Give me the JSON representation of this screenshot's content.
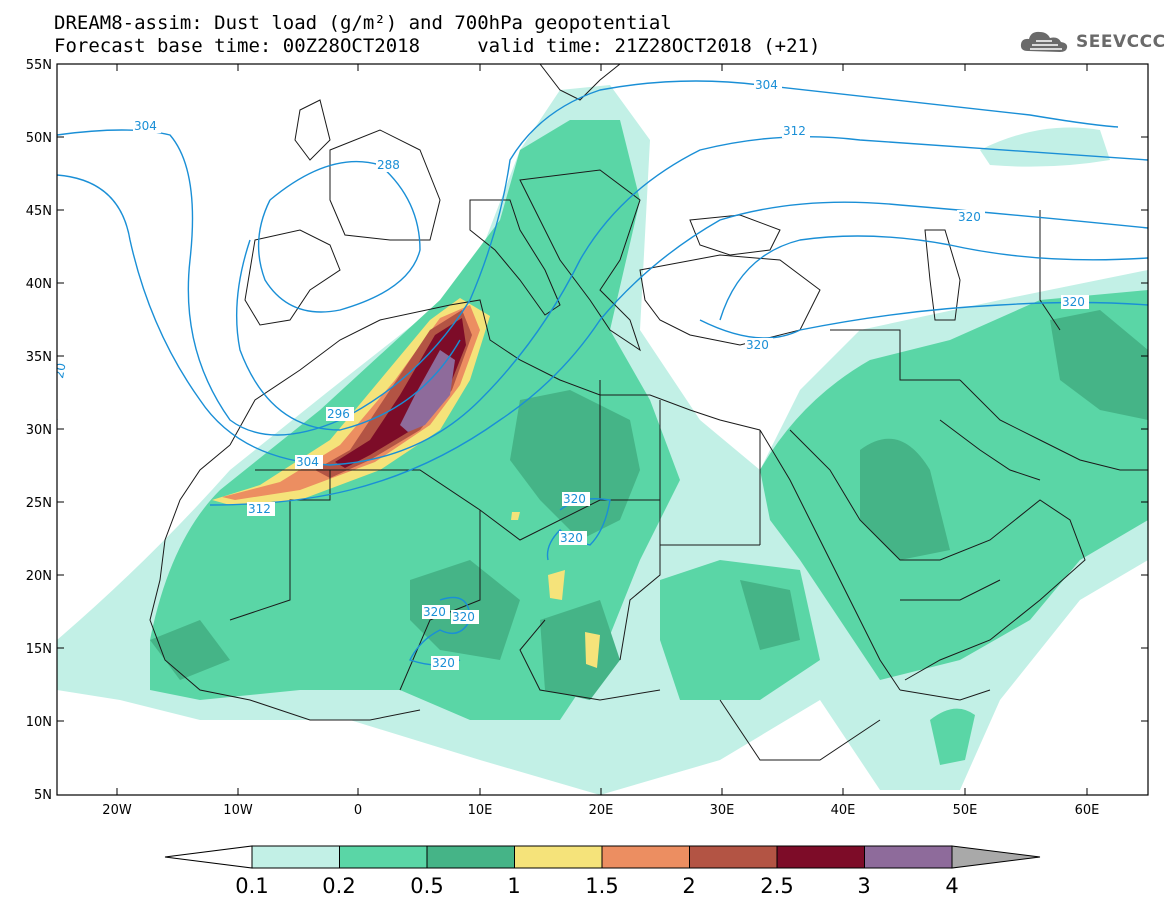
{
  "title": {
    "line1": "DREAM8-assim: Dust load (g/m²) and 700hPa geopotential",
    "line2": "Forecast base time: 00Z28OCT2018     valid time: 21Z28OCT2018 (+21)"
  },
  "logo": {
    "icon": "cloud-logo-icon",
    "text": "SEEVCCC"
  },
  "map": {
    "lat_labels": [
      "55N",
      "50N",
      "45N",
      "40N",
      "35N",
      "30N",
      "25N",
      "20N",
      "15N",
      "10N",
      "5N"
    ],
    "lon_labels": [
      "20W",
      "10W",
      "0",
      "10E",
      "20E",
      "30E",
      "40E",
      "50E",
      "60E"
    ],
    "contour_labels": [
      "304",
      "288",
      "304",
      "312",
      "320",
      "320",
      "320",
      "296",
      "304",
      "312",
      "320",
      "320",
      "320",
      "320",
      "320",
      "20"
    ],
    "colors": {
      "contour": "#1a8fd6",
      "coast": "#1a1a1a"
    }
  },
  "colorbar": {
    "labels": [
      "0.1",
      "0.2",
      "0.5",
      "1",
      "1.5",
      "2",
      "2.5",
      "3",
      "4"
    ],
    "colors": [
      "#c2f0e6",
      "#5ad6a6",
      "#45b487",
      "#f5e37a",
      "#ec8e61",
      "#b35444",
      "#7d0c28",
      "#8e6b9b",
      "#a9a9a9"
    ],
    "unit": "g/m²"
  }
}
